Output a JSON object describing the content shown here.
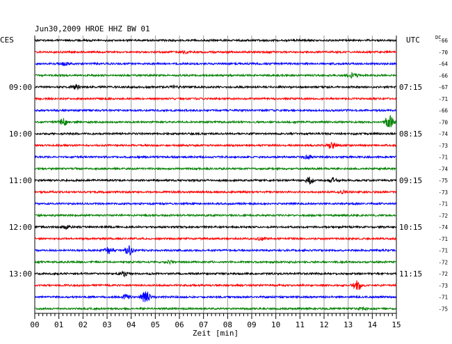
{
  "header": {
    "title": "Jun30,2009   HROE HHZ BW 01",
    "left_tz": "CES",
    "right_tz": "UTC",
    "dc_label": "DC"
  },
  "chart_data": {
    "type": "line",
    "title": "Jun30,2009   HROE HHZ BW 01",
    "xlabel": "Zeit [min]",
    "xlim": [
      0,
      15
    ],
    "x_ticks": [
      "00",
      "01",
      "02",
      "03",
      "04",
      "05",
      "06",
      "07",
      "08",
      "09",
      "10",
      "11",
      "12",
      "13",
      "14",
      "15"
    ],
    "grid": true,
    "trace_colors": [
      "#000000",
      "#ff0000",
      "#0000ff",
      "#008000"
    ],
    "left_time_labels": [
      {
        "trace": 4,
        "label": "09:00"
      },
      {
        "trace": 8,
        "label": "10:00"
      },
      {
        "trace": 12,
        "label": "11:00"
      },
      {
        "trace": 16,
        "label": "12:00"
      },
      {
        "trace": 20,
        "label": "13:00"
      }
    ],
    "right_time_labels": [
      {
        "trace": 4,
        "label": "07:15"
      },
      {
        "trace": 8,
        "label": "08:15"
      },
      {
        "trace": 12,
        "label": "09:15"
      },
      {
        "trace": 16,
        "label": "10:15"
      },
      {
        "trace": 20,
        "label": "11:15"
      }
    ],
    "dc_offsets": [
      "-66",
      "-70",
      "-64",
      "-66",
      "-67",
      "-71",
      "-66",
      "-70",
      "-74",
      "-73",
      "-71",
      "-74",
      "-75",
      "-73",
      "-71",
      "-72",
      "-74",
      "-71",
      "-71",
      "-72",
      "-72",
      "-73",
      "-71",
      "-75"
    ],
    "events": [
      {
        "trace": 1,
        "minute": 6.2,
        "amp": 0.8
      },
      {
        "trace": 2,
        "minute": 1.2,
        "amp": 0.9
      },
      {
        "trace": 3,
        "minute": 13.2,
        "amp": 1.6
      },
      {
        "trace": 4,
        "minute": 1.7,
        "amp": 1.2
      },
      {
        "trace": 4,
        "minute": 5.8,
        "amp": 0.8
      },
      {
        "trace": 7,
        "minute": 1.2,
        "amp": 2.2
      },
      {
        "trace": 7,
        "minute": 14.7,
        "amp": 4.5
      },
      {
        "trace": 9,
        "minute": 12.3,
        "amp": 2.0
      },
      {
        "trace": 10,
        "minute": 11.3,
        "amp": 1.1
      },
      {
        "trace": 12,
        "minute": 11.4,
        "amp": 1.8
      },
      {
        "trace": 12,
        "minute": 12.4,
        "amp": 1.5
      },
      {
        "trace": 13,
        "minute": 12.8,
        "amp": 0.9
      },
      {
        "trace": 16,
        "minute": 1.3,
        "amp": 1.0
      },
      {
        "trace": 17,
        "minute": 9.4,
        "amp": 0.8
      },
      {
        "trace": 18,
        "minute": 3.1,
        "amp": 2.5
      },
      {
        "trace": 18,
        "minute": 3.9,
        "amp": 2.7
      },
      {
        "trace": 19,
        "minute": 5.6,
        "amp": 0.8
      },
      {
        "trace": 20,
        "minute": 3.7,
        "amp": 1.2
      },
      {
        "trace": 21,
        "minute": 13.4,
        "amp": 3.0
      },
      {
        "trace": 22,
        "minute": 4.6,
        "amp": 4.0
      },
      {
        "trace": 22,
        "minute": 3.8,
        "amp": 1.3
      },
      {
        "trace": 23,
        "minute": 13.6,
        "amp": 0.8
      }
    ]
  }
}
